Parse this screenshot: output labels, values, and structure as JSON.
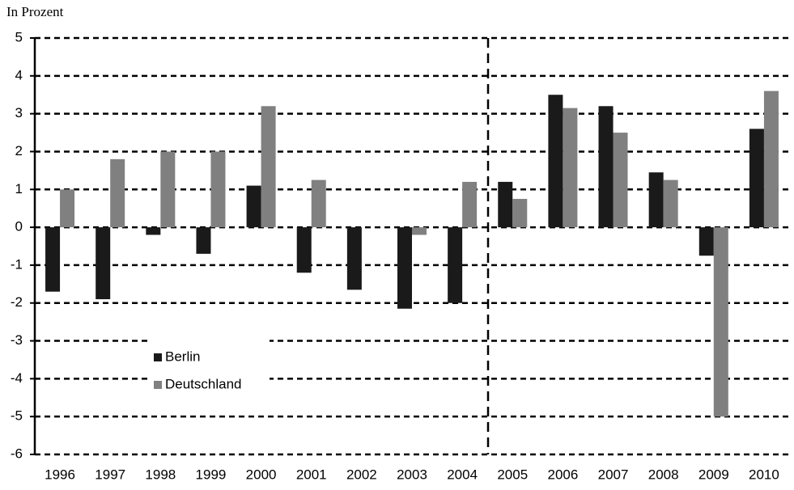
{
  "chart_data": {
    "type": "bar",
    "title": "In Prozent",
    "categories": [
      "1996",
      "1997",
      "1998",
      "1999",
      "2000",
      "2001",
      "2002",
      "2003",
      "2004",
      "2005",
      "2006",
      "2007",
      "2008",
      "2009",
      "2010"
    ],
    "series": [
      {
        "name": "Berlin",
        "color": "#1a1a1a",
        "values": [
          -1.7,
          -1.9,
          -0.2,
          -0.7,
          1.1,
          -1.2,
          -1.65,
          -2.15,
          -2.0,
          1.2,
          3.5,
          3.2,
          1.45,
          -0.75,
          2.6
        ]
      },
      {
        "name": "Deutschland",
        "color": "#808080",
        "values": [
          1.0,
          1.8,
          2.0,
          2.0,
          3.2,
          1.25,
          0,
          -0.2,
          1.2,
          0.75,
          3.15,
          2.5,
          1.25,
          -5.0,
          3.6
        ]
      }
    ],
    "ylim": [
      -6,
      5
    ],
    "yticks": [
      -6,
      -5,
      -4,
      -3,
      -2,
      -1,
      0,
      1,
      2,
      3,
      4,
      5
    ],
    "grid": true
  }
}
